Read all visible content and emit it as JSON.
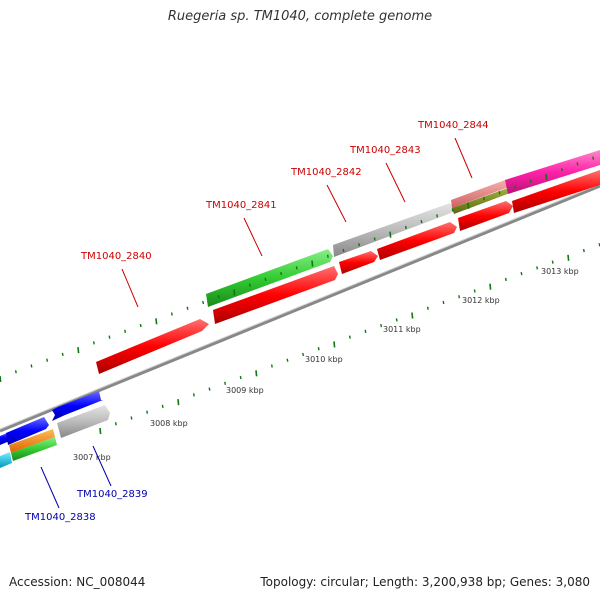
{
  "title": "Ruegeria sp. TM1040, complete genome",
  "footer": {
    "accession": "Accession: NC_008044",
    "summary": "Topology: circular; Length: 3,200,938 bp; Genes: 3,080"
  },
  "colors": {
    "red": "#ff0000",
    "green": "#33cc33",
    "gray": "#bbbbbb",
    "blue": "#0000ff",
    "magenta": "#ff22aa",
    "salmon": "#e88080",
    "olive": "#7a8a1a",
    "orange": "#ff8800",
    "cyan": "#00ccee",
    "label_red": "#cc0000",
    "label_blue": "#0000aa",
    "backbone": "#888888",
    "tick": "#117711"
  },
  "scale_labels": [
    "3007 kbp",
    "3008 kbp",
    "3009 kbp",
    "3010 kbp",
    "3011 kbp",
    "3012 kbp",
    "3013 kbp"
  ],
  "gene_labels": {
    "red": [
      "TM1040_2840",
      "TM1040_2841",
      "TM1040_2842",
      "TM1040_2843",
      "TM1040_2844"
    ],
    "blue": [
      "TM1040_2839",
      "TM1040_2838"
    ]
  }
}
